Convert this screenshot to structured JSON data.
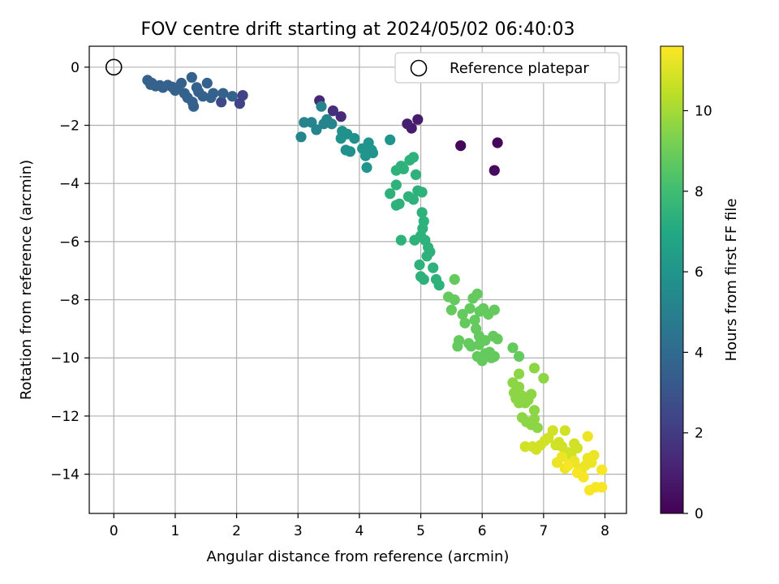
{
  "chart_data": {
    "type": "scatter",
    "title": "FOV centre drift starting at 2024/05/02 06:40:03",
    "xlabel": "Angular distance from reference (arcmin)",
    "ylabel": "Rotation from reference (arcmin)",
    "xlim": [
      -0.4,
      8.35
    ],
    "ylim": [
      -15.35,
      0.72
    ],
    "x_ticks": [
      0,
      1,
      2,
      3,
      4,
      5,
      6,
      7,
      8
    ],
    "y_ticks": [
      0,
      -2,
      -4,
      -6,
      -8,
      -10,
      -12,
      -14
    ],
    "grid": true,
    "legend": {
      "placement": "top-right",
      "label": "Reference platepar"
    },
    "reference_point": {
      "x": 0,
      "y": 0
    },
    "colorbar": {
      "label": "Hours from first FF file",
      "range": [
        0,
        11.6
      ],
      "ticks": [
        0,
        2,
        4,
        6,
        8,
        10
      ],
      "colormap": "viridis"
    },
    "series": [
      {
        "points": [
          [
            5.65,
            -2.7,
            0.2
          ],
          [
            6.25,
            -2.6,
            0.2
          ],
          [
            6.2,
            -3.55,
            0.3
          ],
          [
            4.85,
            -2.1,
            0.9
          ],
          [
            4.95,
            -1.8,
            0.9
          ],
          [
            4.78,
            -1.95,
            1.0
          ],
          [
            3.35,
            -1.15,
            1.3
          ],
          [
            3.7,
            -1.7,
            1.4
          ],
          [
            3.57,
            -1.5,
            1.6
          ],
          [
            2.1,
            -0.97,
            2.3
          ],
          [
            2.05,
            -1.25,
            2.3
          ],
          [
            1.75,
            -1.2,
            2.5
          ],
          [
            0.55,
            -0.45,
            3.6
          ],
          [
            0.62,
            -0.55,
            3.6
          ],
          [
            0.6,
            -0.6,
            3.6
          ],
          [
            0.75,
            -0.63,
            3.6
          ],
          [
            0.8,
            -0.7,
            3.6
          ],
          [
            0.88,
            -0.62,
            3.6
          ],
          [
            0.95,
            -0.68,
            3.6
          ],
          [
            1.0,
            -0.8,
            3.6
          ],
          [
            1.03,
            -0.72,
            3.6
          ],
          [
            1.1,
            -0.55,
            3.6
          ],
          [
            1.15,
            -0.9,
            3.6
          ],
          [
            1.2,
            -1.05,
            3.6
          ],
          [
            1.27,
            -0.35,
            3.6
          ],
          [
            1.3,
            -1.35,
            3.6
          ],
          [
            1.35,
            -0.7,
            3.6
          ],
          [
            1.38,
            -0.85,
            3.6
          ],
          [
            1.45,
            -1.0,
            3.6
          ],
          [
            1.52,
            -0.55,
            3.6
          ],
          [
            1.58,
            -1.05,
            3.6
          ],
          [
            1.62,
            -0.9,
            3.6
          ],
          [
            1.78,
            -0.9,
            3.6
          ],
          [
            1.93,
            -1.0,
            3.6
          ],
          [
            1.28,
            -1.2,
            3.6
          ],
          [
            0.68,
            -0.65,
            3.6
          ],
          [
            3.05,
            -2.4,
            5.2
          ],
          [
            3.1,
            -1.9,
            5.2
          ],
          [
            3.22,
            -1.9,
            5.2
          ],
          [
            3.3,
            -2.15,
            5.2
          ],
          [
            3.38,
            -1.35,
            5.2
          ],
          [
            3.42,
            -1.95,
            5.2
          ],
          [
            3.47,
            -1.8,
            5.2
          ],
          [
            3.55,
            -1.95,
            5.2
          ],
          [
            3.7,
            -2.45,
            5.8
          ],
          [
            3.72,
            -2.2,
            5.8
          ],
          [
            3.8,
            -2.3,
            5.8
          ],
          [
            3.78,
            -2.85,
            5.8
          ],
          [
            3.85,
            -2.9,
            5.8
          ],
          [
            3.92,
            -2.45,
            5.8
          ],
          [
            4.05,
            -2.8,
            6.0
          ],
          [
            4.1,
            -3.05,
            6.0
          ],
          [
            4.12,
            -3.45,
            6.0
          ],
          [
            4.15,
            -2.6,
            6.0
          ],
          [
            4.2,
            -2.85,
            6.0
          ],
          [
            4.22,
            -2.95,
            6.0
          ],
          [
            4.5,
            -2.5,
            6.0
          ],
          [
            4.6,
            -3.55,
            7.4
          ],
          [
            4.68,
            -3.4,
            7.4
          ],
          [
            4.72,
            -3.5,
            7.4
          ],
          [
            4.82,
            -3.2,
            7.4
          ],
          [
            4.88,
            -3.1,
            7.4
          ],
          [
            4.92,
            -3.7,
            7.4
          ],
          [
            4.6,
            -4.05,
            7.4
          ],
          [
            4.5,
            -4.35,
            7.4
          ],
          [
            4.6,
            -4.75,
            7.4
          ],
          [
            4.65,
            -4.7,
            7.4
          ],
          [
            4.8,
            -4.45,
            7.4
          ],
          [
            4.88,
            -4.55,
            7.4
          ],
          [
            4.95,
            -4.25,
            7.4
          ],
          [
            5.02,
            -4.3,
            7.4
          ],
          [
            5.02,
            -5.0,
            7.4
          ],
          [
            5.05,
            -5.3,
            7.4
          ],
          [
            5.03,
            -5.55,
            7.4
          ],
          [
            5.0,
            -5.8,
            7.4
          ],
          [
            4.9,
            -5.95,
            7.4
          ],
          [
            4.68,
            -5.95,
            7.4
          ],
          [
            5.07,
            -5.95,
            7.4
          ],
          [
            5.12,
            -6.2,
            7.4
          ],
          [
            5.1,
            -6.5,
            7.4
          ],
          [
            5.15,
            -6.35,
            7.4
          ],
          [
            4.98,
            -6.8,
            7.4
          ],
          [
            5.05,
            -7.3,
            7.4
          ],
          [
            5.2,
            -6.9,
            7.4
          ],
          [
            5.25,
            -7.3,
            7.4
          ],
          [
            5.3,
            -7.5,
            7.4
          ],
          [
            5.0,
            -7.2,
            7.4
          ],
          [
            5.55,
            -7.3,
            8.8
          ],
          [
            5.45,
            -7.9,
            8.8
          ],
          [
            5.55,
            -8.0,
            8.8
          ],
          [
            5.5,
            -8.35,
            8.8
          ],
          [
            5.68,
            -8.5,
            8.8
          ],
          [
            5.72,
            -8.8,
            8.8
          ],
          [
            5.8,
            -8.3,
            8.8
          ],
          [
            5.85,
            -7.95,
            8.8
          ],
          [
            5.92,
            -7.8,
            8.8
          ],
          [
            5.96,
            -8.4,
            8.8
          ],
          [
            6.02,
            -8.3,
            8.8
          ],
          [
            6.1,
            -8.5,
            8.8
          ],
          [
            6.2,
            -8.35,
            8.8
          ],
          [
            5.88,
            -8.7,
            8.8
          ],
          [
            5.9,
            -9.0,
            8.8
          ],
          [
            5.95,
            -9.25,
            8.8
          ],
          [
            5.62,
            -9.4,
            8.8
          ],
          [
            5.6,
            -9.6,
            8.8
          ],
          [
            5.78,
            -9.5,
            8.8
          ],
          [
            5.82,
            -9.6,
            8.8
          ],
          [
            5.95,
            -9.55,
            8.8
          ],
          [
            6.05,
            -9.4,
            8.8
          ],
          [
            6.18,
            -9.25,
            8.8
          ],
          [
            6.25,
            -9.35,
            8.8
          ],
          [
            5.92,
            -9.95,
            8.8
          ],
          [
            6.0,
            -10.1,
            8.8
          ],
          [
            6.12,
            -9.8,
            8.8
          ],
          [
            6.15,
            -10.0,
            8.8
          ],
          [
            6.2,
            -9.95,
            8.8
          ],
          [
            6.05,
            -9.85,
            8.8
          ],
          [
            6.5,
            -9.65,
            8.8
          ],
          [
            6.6,
            -9.95,
            8.8
          ],
          [
            6.6,
            -10.55,
            9.6
          ],
          [
            6.5,
            -10.85,
            9.6
          ],
          [
            6.52,
            -11.2,
            9.6
          ],
          [
            6.55,
            -11.4,
            9.6
          ],
          [
            6.6,
            -11.0,
            9.6
          ],
          [
            6.65,
            -11.3,
            9.6
          ],
          [
            6.7,
            -11.55,
            9.6
          ],
          [
            6.75,
            -11.45,
            9.6
          ],
          [
            6.8,
            -11.25,
            9.6
          ],
          [
            6.85,
            -11.8,
            9.6
          ],
          [
            6.85,
            -10.35,
            9.6
          ],
          [
            7.0,
            -10.7,
            9.6
          ],
          [
            6.65,
            -12.05,
            9.6
          ],
          [
            6.72,
            -12.2,
            9.6
          ],
          [
            6.8,
            -12.3,
            9.6
          ],
          [
            6.9,
            -12.4,
            9.6
          ],
          [
            6.85,
            -12.1,
            9.6
          ],
          [
            6.6,
            -11.55,
            9.6
          ],
          [
            6.7,
            -13.05,
            10.8
          ],
          [
            6.82,
            -13.05,
            10.8
          ],
          [
            6.88,
            -13.15,
            10.8
          ],
          [
            6.95,
            -13.0,
            10.8
          ],
          [
            7.02,
            -12.85,
            10.8
          ],
          [
            7.08,
            -12.75,
            10.8
          ],
          [
            7.15,
            -12.5,
            10.8
          ],
          [
            7.2,
            -13.0,
            10.8
          ],
          [
            7.25,
            -12.9,
            10.8
          ],
          [
            7.3,
            -13.05,
            10.8
          ],
          [
            7.35,
            -12.5,
            10.8
          ],
          [
            7.4,
            -13.25,
            10.8
          ],
          [
            7.45,
            -13.35,
            10.8
          ],
          [
            7.5,
            -12.95,
            10.8
          ],
          [
            7.55,
            -13.1,
            10.8
          ],
          [
            7.22,
            -13.6,
            11.3
          ],
          [
            7.3,
            -13.4,
            11.3
          ],
          [
            7.35,
            -13.8,
            11.3
          ],
          [
            7.42,
            -13.65,
            11.3
          ],
          [
            7.5,
            -13.55,
            11.3
          ],
          [
            7.58,
            -13.8,
            11.3
          ],
          [
            7.62,
            -14.0,
            11.3
          ],
          [
            7.68,
            -13.7,
            11.3
          ],
          [
            7.72,
            -13.45,
            11.3
          ],
          [
            7.78,
            -13.6,
            11.3
          ],
          [
            7.82,
            -13.35,
            11.3
          ],
          [
            7.72,
            -12.7,
            11.3
          ],
          [
            7.75,
            -14.55,
            11.5
          ],
          [
            7.85,
            -14.45,
            11.5
          ],
          [
            7.95,
            -14.45,
            11.5
          ],
          [
            7.95,
            -13.85,
            11.5
          ],
          [
            7.65,
            -14.1,
            11.5
          ],
          [
            7.55,
            -13.95,
            11.5
          ],
          [
            7.4,
            -13.7,
            11.5
          ]
        ]
      }
    ]
  }
}
